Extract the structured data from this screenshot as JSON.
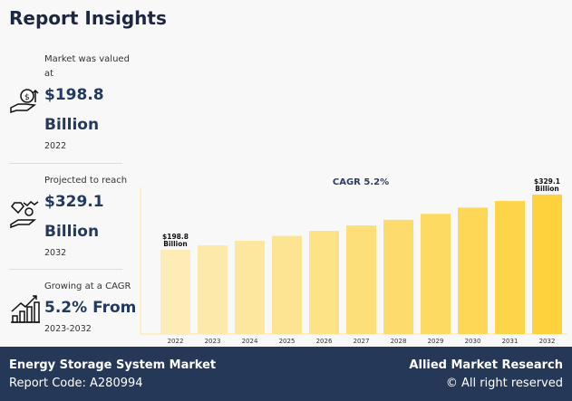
{
  "title": "Report Insights",
  "stats": [
    {
      "label": "Market was valued at",
      "value_line1": "$198.8",
      "value_line2": "Billion",
      "year": "2022",
      "icon": "hand-money-up-icon"
    },
    {
      "label": "Projected to reach",
      "value_line1": "$329.1",
      "value_line2": "Billion",
      "year": "2032",
      "icon": "hand-diamond-coin-icon"
    },
    {
      "label": "Growing at a CAGR",
      "value_line1": "5.2% From",
      "year": "2023-2032",
      "icon": "bar-growth-icon"
    }
  ],
  "chart_data": {
    "type": "bar",
    "title": "CAGR 5.2%",
    "categories": [
      "2022",
      "2023",
      "2024",
      "2025",
      "2026",
      "2027",
      "2028",
      "2029",
      "2030",
      "2031",
      "2032"
    ],
    "values": [
      198.8,
      209.1,
      220.0,
      231.5,
      243.5,
      256.2,
      269.5,
      283.5,
      298.2,
      313.8,
      329.1
    ],
    "data_labels": {
      "0": [
        "$198.8",
        "Billion"
      ],
      "10": [
        "$329.1",
        "Billion"
      ]
    },
    "ylim": [
      0,
      346
    ],
    "grid": false,
    "colors": [
      "#fdecb6",
      "#fde2a0",
      "#fed24a",
      "#fdd23d"
    ]
  },
  "footer": {
    "market": "Energy Storage System Market",
    "report_code": "Report Code: A280994",
    "brand": "Allied Market Research",
    "rights": "© All right reserved"
  }
}
